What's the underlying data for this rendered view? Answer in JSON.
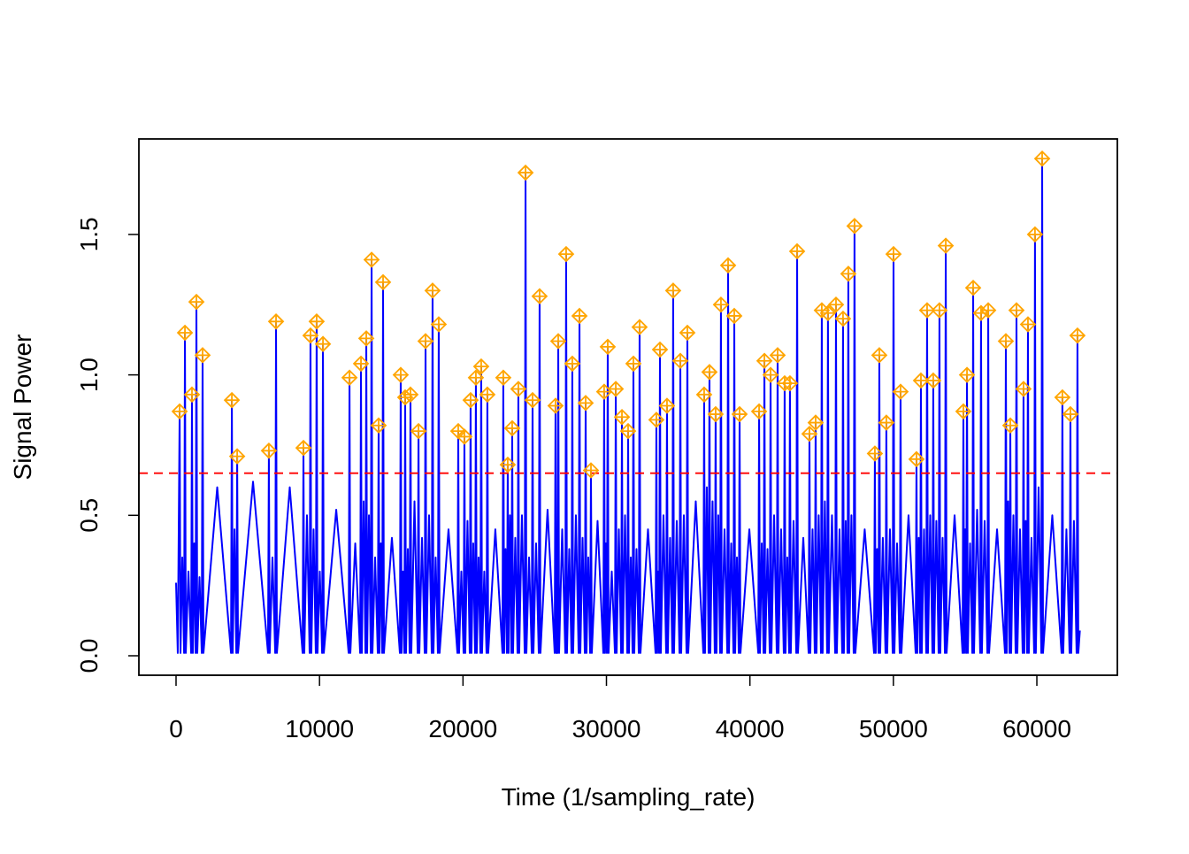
{
  "chart_data": {
    "type": "line",
    "xlabel": "Time (1/sampling_rate)",
    "ylabel": "Signal Power",
    "xlim": [
      -2590,
      65610
    ],
    "ylim": [
      -0.0693,
      1.84
    ],
    "xticks": [
      0,
      10000,
      20000,
      30000,
      40000,
      50000,
      60000
    ],
    "yticks": [
      {
        "value": 0,
        "label": "0.0"
      },
      0.5,
      {
        "value": 1,
        "label": "1.0"
      },
      1.5
    ],
    "hlines": [
      {
        "value": 0.65,
        "color": "#ff0000",
        "dashed": true
      }
    ],
    "series": [
      {
        "type": "line",
        "color": "#0000ff",
        "x": [
          0,
          120,
          250,
          310,
          435,
          560,
          620,
          680,
          865,
          1050,
          1110,
          1170,
          1265,
          1360,
          1420,
          1480,
          1635,
          1790,
          1850,
          1910,
          2870,
          3830,
          3890,
          3950,
          4075,
          4200,
          4260,
          4320,
          5365,
          6410,
          6470,
          6530,
          6720,
          6910,
          6970,
          7030,
          7925,
          8820,
          8880,
          8940,
          9125,
          9310,
          9370,
          9430,
          9585,
          9740,
          9800,
          9860,
          10020,
          10180,
          10240,
          10300,
          11165,
          12030,
          12090,
          12150,
          12490,
          12830,
          12890,
          12950,
          13075,
          13200,
          13260,
          13320,
          13445,
          13570,
          13630,
          13690,
          13875,
          14060,
          14120,
          14180,
          14275,
          14370,
          14430,
          14490,
          15045,
          15600,
          15660,
          15720,
          15815,
          15910,
          15970,
          16030,
          16155,
          16280,
          16340,
          16400,
          16620,
          16840,
          16900,
          16960,
          17145,
          17330,
          17390,
          17450,
          17635,
          17820,
          17880,
          17940,
          18095,
          18250,
          18310,
          18370,
          18990,
          19610,
          19670,
          19730,
          19885,
          20040,
          20100,
          20160,
          20315,
          20470,
          20530,
          20590,
          20715,
          20840,
          20900,
          20960,
          21085,
          21210,
          21270,
          21330,
          21485,
          21640,
          21700,
          21760,
          22255,
          22750,
          22810,
          22870,
          22965,
          23060,
          23120,
          23180,
          23275,
          23370,
          23430,
          23490,
          23645,
          23800,
          23860,
          23920,
          24110,
          24300,
          24360,
          24420,
          24605,
          24790,
          24850,
          24910,
          25095,
          25280,
          25340,
          25400,
          25895,
          26390,
          26450,
          26510,
          26545,
          26580,
          26640,
          26700,
          26915,
          27130,
          27190,
          27250,
          27405,
          27560,
          27620,
          27680,
          27870,
          28060,
          28120,
          28180,
          28335,
          28490,
          28550,
          28610,
          28735,
          28860,
          28920,
          28980,
          29380,
          29780,
          29840,
          29900,
          29965,
          30030,
          30090,
          30150,
          30370,
          30590,
          30650,
          30710,
          30865,
          31020,
          31080,
          31140,
          31295,
          31450,
          31510,
          31570,
          31695,
          31820,
          31880,
          31940,
          32095,
          32250,
          32310,
          32370,
          32895,
          33420,
          33480,
          33540,
          33605,
          33670,
          33730,
          33790,
          33975,
          34160,
          34220,
          34280,
          34435,
          34590,
          34650,
          34710,
          34900,
          35090,
          35150,
          35210,
          35395,
          35580,
          35640,
          35700,
          36225,
          36750,
          36810,
          36870,
          36995,
          37120,
          37180,
          37240,
          37395,
          37550,
          37610,
          37670,
          37795,
          37920,
          37980,
          38040,
          38230,
          38420,
          38480,
          38540,
          38695,
          38850,
          38910,
          38970,
          39095,
          39220,
          39280,
          39340,
          39960,
          40580,
          40640,
          40700,
          40825,
          40950,
          41010,
          41070,
          41225,
          41380,
          41440,
          41500,
          41685,
          41870,
          41930,
          41990,
          42175,
          42360,
          42420,
          42480,
          42605,
          42730,
          42790,
          42850,
          43040,
          43230,
          43290,
          43350,
          43720,
          44090,
          44150,
          44210,
          44365,
          44520,
          44580,
          44640,
          44795,
          44950,
          45010,
          45070,
          45225,
          45380,
          45440,
          45500,
          45720,
          45940,
          46000,
          46060,
          46245,
          46430,
          46490,
          46550,
          46675,
          46800,
          46860,
          46920,
          47075,
          47230,
          47290,
          47350,
          48000,
          48650,
          48710,
          48770,
          48865,
          48960,
          49020,
          49080,
          49265,
          49450,
          49510,
          49570,
          49760,
          49950,
          50010,
          50070,
          50255,
          50440,
          50500,
          50560,
          51055,
          51550,
          51610,
          51670,
          51765,
          51860,
          51920,
          51980,
          52135,
          52290,
          52350,
          52410,
          52565,
          52720,
          52780,
          52840,
          52995,
          53150,
          53210,
          53270,
          53430,
          53590,
          53650,
          53710,
          54265,
          54820,
          54880,
          54940,
          55005,
          55070,
          55130,
          55190,
          55345,
          55500,
          55560,
          55620,
          55835,
          56050,
          56110,
          56170,
          56360,
          56550,
          56610,
          56670,
          57225,
          57780,
          57840,
          57900,
          57995,
          58090,
          58150,
          58210,
          58365,
          58520,
          58580,
          58640,
          58825,
          59010,
          59070,
          59130,
          59225,
          59320,
          59380,
          59440,
          59625,
          59810,
          59870,
          59930,
          60120,
          60310,
          60370,
          60430,
          61075,
          61720,
          61780,
          61840,
          62060,
          62280,
          62340,
          62400,
          62585,
          62770,
          62830,
          62890,
          63000
        ],
        "values": [
          0.26,
          0.01,
          0.87,
          0.01,
          0.35,
          0.01,
          1.15,
          0.01,
          0.3,
          0.01,
          0.93,
          0.01,
          0.4,
          0.01,
          1.26,
          0.01,
          0.28,
          0.01,
          1.07,
          0.01,
          0.6,
          0.01,
          0.91,
          0.01,
          0.45,
          0.01,
          0.71,
          0.01,
          0.62,
          0.01,
          0.73,
          0.01,
          0.35,
          0.01,
          1.19,
          0.01,
          0.6,
          0.01,
          0.74,
          0.01,
          0.5,
          0.01,
          1.14,
          0.01,
          0.45,
          0.01,
          1.19,
          0.01,
          0.3,
          0.01,
          1.11,
          0.01,
          0.52,
          0.01,
          0.99,
          0.01,
          0.4,
          0.01,
          1.04,
          0.01,
          0.55,
          0.01,
          1.13,
          0.01,
          0.5,
          0.01,
          1.41,
          0.01,
          0.35,
          0.01,
          0.82,
          0.01,
          0.4,
          0.01,
          1.33,
          0.01,
          0.42,
          0.01,
          1.0,
          0.01,
          0.3,
          0.01,
          0.92,
          0.01,
          0.38,
          0.01,
          0.93,
          0.01,
          0.55,
          0.01,
          0.8,
          0.01,
          0.42,
          0.01,
          1.12,
          0.01,
          0.5,
          0.01,
          1.3,
          0.01,
          0.35,
          0.01,
          1.18,
          0.01,
          0.45,
          0.01,
          0.8,
          0.01,
          0.3,
          0.01,
          0.78,
          0.01,
          0.48,
          0.01,
          0.91,
          0.01,
          0.4,
          0.01,
          0.99,
          0.01,
          0.35,
          0.01,
          1.03,
          0.01,
          0.3,
          0.01,
          0.93,
          0.01,
          0.45,
          0.01,
          0.99,
          0.01,
          0.38,
          0.01,
          0.68,
          0.01,
          0.5,
          0.01,
          0.81,
          0.01,
          0.42,
          0.01,
          0.95,
          0.01,
          0.5,
          0.01,
          1.72,
          0.01,
          0.35,
          0.01,
          0.91,
          0.01,
          0.4,
          0.01,
          1.28,
          0.01,
          0.52,
          0.01,
          0.89,
          0.01,
          0.3,
          0.01,
          1.12,
          0.01,
          0.45,
          0.01,
          1.43,
          0.01,
          0.38,
          0.01,
          1.04,
          0.01,
          0.5,
          0.01,
          1.21,
          0.01,
          0.42,
          0.01,
          0.9,
          0.01,
          0.35,
          0.01,
          0.66,
          0.01,
          0.48,
          0.01,
          0.94,
          0.01,
          0.4,
          0.01,
          1.1,
          0.01,
          0.3,
          0.01,
          0.95,
          0.01,
          0.45,
          0.01,
          0.85,
          0.01,
          0.5,
          0.01,
          0.8,
          0.01,
          0.35,
          0.01,
          1.04,
          0.01,
          0.38,
          0.01,
          1.17,
          0.01,
          0.45,
          0.01,
          0.84,
          0.01,
          0.3,
          0.01,
          1.09,
          0.01,
          0.5,
          0.01,
          0.89,
          0.01,
          0.42,
          0.01,
          1.3,
          0.01,
          0.48,
          0.01,
          1.05,
          0.01,
          0.5,
          0.01,
          1.15,
          0.01,
          0.55,
          0.01,
          0.93,
          0.01,
          0.6,
          0.01,
          1.01,
          0.01,
          0.55,
          0.01,
          0.86,
          0.01,
          0.5,
          0.01,
          1.25,
          0.01,
          0.45,
          0.01,
          1.39,
          0.01,
          0.4,
          0.01,
          1.21,
          0.01,
          0.35,
          0.01,
          0.86,
          0.01,
          0.45,
          0.01,
          0.87,
          0.01,
          0.4,
          0.01,
          1.05,
          0.01,
          0.38,
          0.01,
          1.0,
          0.01,
          0.5,
          0.01,
          1.07,
          0.01,
          0.45,
          0.01,
          0.97,
          0.01,
          0.35,
          0.01,
          0.97,
          0.01,
          0.48,
          0.01,
          1.44,
          0.01,
          0.42,
          0.01,
          0.79,
          0.01,
          0.45,
          0.01,
          0.83,
          0.01,
          0.5,
          0.01,
          1.23,
          0.01,
          0.55,
          0.01,
          1.22,
          0.01,
          0.5,
          0.01,
          1.25,
          0.01,
          0.45,
          0.01,
          1.2,
          0.01,
          0.48,
          0.01,
          1.36,
          0.01,
          0.5,
          0.01,
          1.53,
          0.01,
          0.45,
          0.01,
          0.72,
          0.01,
          0.38,
          0.01,
          1.07,
          0.01,
          0.42,
          0.01,
          0.83,
          0.01,
          0.45,
          0.01,
          1.43,
          0.01,
          0.4,
          0.01,
          0.94,
          0.01,
          0.5,
          0.01,
          0.7,
          0.01,
          0.42,
          0.01,
          0.98,
          0.01,
          0.45,
          0.01,
          1.23,
          0.01,
          0.5,
          0.01,
          0.98,
          0.01,
          0.48,
          0.01,
          1.23,
          0.01,
          0.42,
          0.01,
          1.46,
          0.01,
          0.5,
          0.01,
          0.87,
          0.01,
          0.45,
          0.01,
          1.0,
          0.01,
          0.4,
          0.01,
          1.31,
          0.01,
          0.52,
          0.01,
          1.22,
          0.01,
          0.48,
          0.01,
          1.23,
          0.01,
          0.45,
          0.01,
          1.12,
          0.01,
          0.55,
          0.01,
          0.82,
          0.01,
          0.5,
          0.01,
          1.23,
          0.01,
          0.45,
          0.01,
          0.95,
          0.01,
          0.48,
          0.01,
          1.18,
          0.01,
          0.42,
          0.01,
          1.5,
          0.01,
          0.6,
          0.01,
          1.77,
          0.01,
          0.5,
          0.01,
          0.92,
          0.01,
          0.45,
          0.01,
          0.86,
          0.01,
          0.48,
          0.01,
          1.14,
          0.01,
          0.09
        ]
      },
      {
        "type": "scatter",
        "color": "#ffa500",
        "x": [
          250,
          620,
          1110,
          1420,
          1850,
          3890,
          4260,
          6470,
          6970,
          8880,
          9370,
          9800,
          10240,
          12090,
          12890,
          13260,
          13630,
          14120,
          14430,
          15660,
          15970,
          16340,
          16900,
          17390,
          17880,
          18310,
          19670,
          20100,
          20530,
          20900,
          21270,
          21700,
          22810,
          23120,
          23430,
          23860,
          24360,
          24850,
          25340,
          26450,
          26640,
          27190,
          27620,
          28120,
          28550,
          28920,
          29840,
          30090,
          30650,
          31080,
          31510,
          31880,
          32310,
          33480,
          33730,
          34220,
          34650,
          35150,
          35640,
          36810,
          37180,
          37610,
          37980,
          38480,
          38910,
          39280,
          40640,
          41010,
          41440,
          41930,
          42420,
          42790,
          43290,
          44150,
          44580,
          45010,
          45440,
          46000,
          46490,
          46860,
          47290,
          48710,
          49020,
          49510,
          50010,
          50500,
          51610,
          51920,
          52350,
          52780,
          53210,
          53650,
          54880,
          55130,
          55560,
          56110,
          56610,
          57840,
          58150,
          58580,
          59070,
          59380,
          59870,
          60370,
          61780,
          62340,
          62830
        ],
        "values": [
          0.87,
          1.15,
          0.93,
          1.26,
          1.07,
          0.91,
          0.71,
          0.73,
          1.19,
          0.74,
          1.14,
          1.19,
          1.11,
          0.99,
          1.04,
          1.13,
          1.41,
          0.82,
          1.33,
          1.0,
          0.92,
          0.93,
          0.8,
          1.12,
          1.3,
          1.18,
          0.8,
          0.78,
          0.91,
          0.99,
          1.03,
          0.93,
          0.99,
          0.68,
          0.81,
          0.95,
          1.72,
          0.91,
          1.28,
          0.89,
          1.12,
          1.43,
          1.04,
          1.21,
          0.9,
          0.66,
          0.94,
          1.1,
          0.95,
          0.85,
          0.8,
          1.04,
          1.17,
          0.84,
          1.09,
          0.89,
          1.3,
          1.05,
          1.15,
          0.93,
          1.01,
          0.86,
          1.25,
          1.39,
          1.21,
          0.86,
          0.87,
          1.05,
          1.0,
          1.07,
          0.97,
          0.97,
          1.44,
          0.79,
          0.83,
          1.23,
          1.22,
          1.25,
          1.2,
          1.36,
          1.53,
          0.72,
          1.07,
          0.83,
          1.43,
          0.94,
          0.7,
          0.98,
          1.23,
          0.98,
          1.23,
          1.46,
          0.87,
          1.0,
          1.31,
          1.22,
          1.23,
          1.12,
          0.82,
          1.23,
          0.95,
          1.18,
          1.5,
          1.77,
          0.92,
          0.86,
          1.14
        ]
      }
    ]
  }
}
